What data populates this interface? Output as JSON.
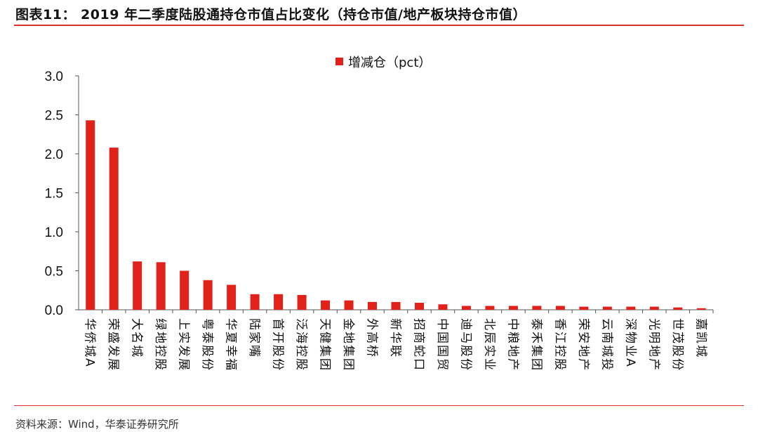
{
  "figure": {
    "title": "图表11： 2019 年二季度陆股通持仓市值占比变化（持仓市值/地产板块持仓市值）",
    "source": "资料来源：Wind，华泰证券研究所"
  },
  "colors": {
    "bar": "#e0221b",
    "rule": "#d9312b",
    "axis": "#555555"
  },
  "chart_data": {
    "type": "bar",
    "title": "",
    "xlabel": "",
    "ylabel": "",
    "ylim": [
      0,
      3.0
    ],
    "yticks": [
      "0.0",
      "0.5",
      "1.0",
      "1.5",
      "2.0",
      "2.5",
      "3.0"
    ],
    "grid": false,
    "legend": "top-center",
    "categories": [
      "华侨城A",
      "荣盛发展",
      "大名城",
      "绿地控股",
      "上实发展",
      "粤泰股份",
      "华夏幸福",
      "陆家嘴",
      "首开股份",
      "泛海控股",
      "天健集团",
      "金地集团",
      "外高桥",
      "新华联",
      "招商蛇口",
      "中国国贸",
      "迪马股份",
      "北辰实业",
      "中粮地产",
      "泰禾集团",
      "香江控股",
      "荣安地产",
      "云南城投",
      "深物业A",
      "光明地产",
      "世茂股份",
      "嘉凯城"
    ],
    "series": [
      {
        "name": "增减仓（pct）",
        "values": [
          2.43,
          2.08,
          0.62,
          0.61,
          0.5,
          0.38,
          0.32,
          0.2,
          0.2,
          0.19,
          0.12,
          0.12,
          0.1,
          0.1,
          0.09,
          0.07,
          0.05,
          0.05,
          0.05,
          0.05,
          0.05,
          0.04,
          0.04,
          0.04,
          0.04,
          0.03,
          0.02
        ]
      }
    ]
  }
}
